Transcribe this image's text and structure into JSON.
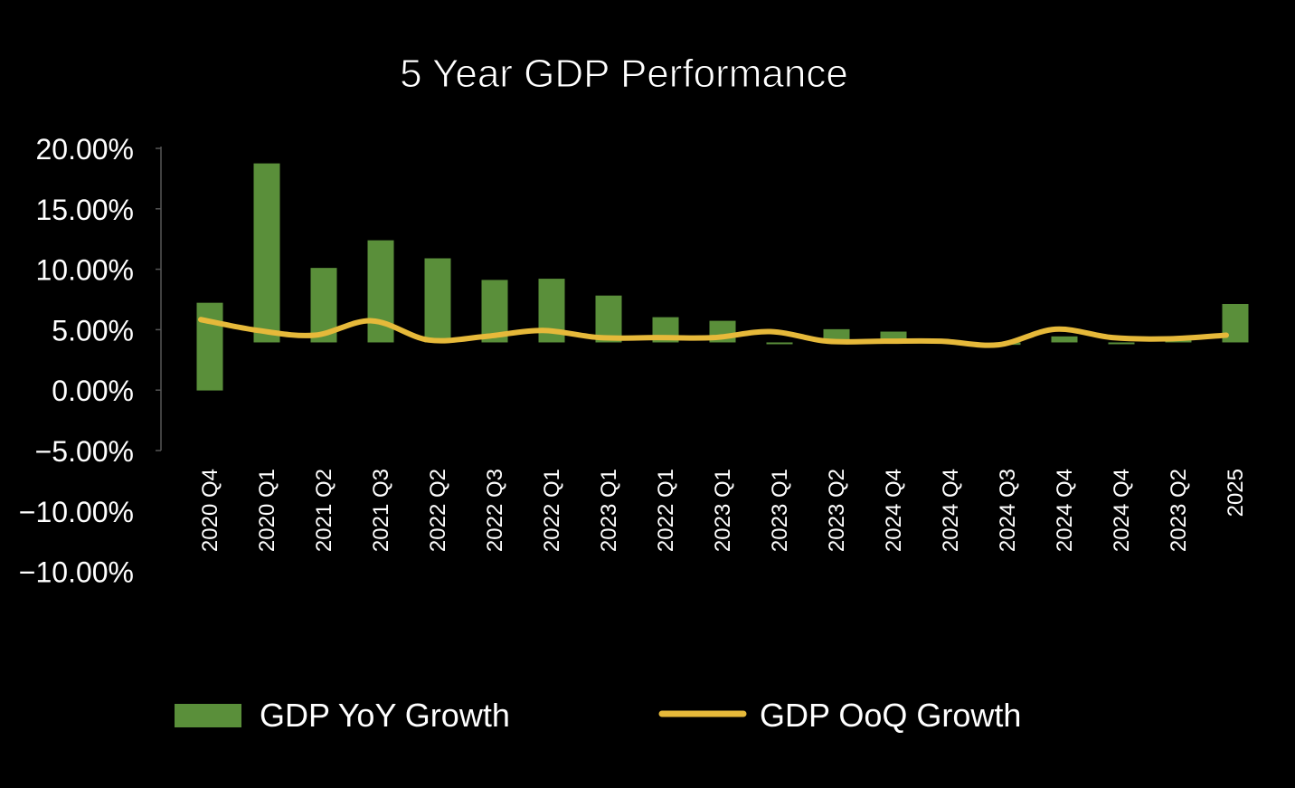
{
  "chart_data": {
    "type": "bar",
    "title": "5 Year GDP Performance",
    "xlabel": "",
    "ylabel": "",
    "y_tick_labels": [
      "20.00%",
      "15.00%",
      "10.00%",
      "5.00%",
      "0.00%",
      "−5.00%",
      "−10.00%",
      "−10.00%"
    ],
    "ylim": [
      -5,
      20
    ],
    "categories": [
      "2020 Q4",
      "2020 Q1",
      "2021 Q2",
      "2021 Q3",
      "2022 Q2",
      "2022 Q3",
      "2022 Q1",
      "2023 Q1",
      "2022 Q1",
      "2023 Q1",
      "2023 Q1",
      "2023 Q2",
      "2024 Q4",
      "2024 Q4",
      "2024 Q3",
      "2024 Q4",
      "2024 Q4",
      "2023 Q2",
      "2025"
    ],
    "bar_baseline": 4,
    "series": [
      {
        "name": "GDP YoY Growth",
        "type": "bar",
        "color": "#5a8f3a",
        "values": [
          7.3,
          18.9,
          10.2,
          12.5,
          11.0,
          9.2,
          9.3,
          7.9,
          6.1,
          5.8,
          3.9,
          5.1,
          4.9,
          4.1,
          3.8,
          4.5,
          3.9,
          4.2,
          7.2
        ]
      },
      {
        "name": "GDP OoQ Growth",
        "type": "line",
        "color": "#e6b93a",
        "values": [
          5.9,
          5.0,
          4.6,
          5.8,
          4.2,
          4.5,
          5.0,
          4.4,
          4.4,
          4.4,
          4.9,
          4.1,
          4.1,
          4.1,
          3.8,
          5.1,
          4.4,
          4.3,
          4.6
        ]
      }
    ],
    "legend_position": "bottom",
    "grid": false
  }
}
